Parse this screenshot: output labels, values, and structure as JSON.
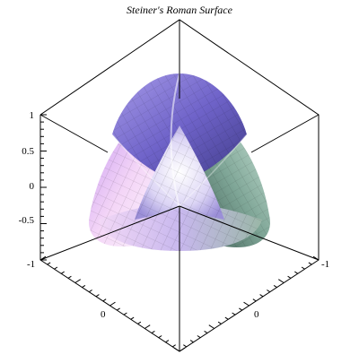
{
  "chart_data": {
    "type": "surface3d",
    "title": "Steiner's Roman Surface",
    "axes": {
      "z": {
        "range": [
          -1,
          1
        ],
        "ticks": [
          1,
          0.5,
          0,
          -0.5
        ],
        "tick_labels": [
          "1",
          "0.5",
          "0",
          "-0.5"
        ]
      },
      "x": {
        "range": [
          -1,
          1
        ],
        "tick_labels": [
          "-1",
          "0"
        ]
      },
      "y": {
        "range": [
          -1,
          1
        ],
        "tick_labels": [
          "-1",
          "0"
        ]
      }
    },
    "grid": false,
    "box": "boxed",
    "surface": {
      "parametric": "(sin(2u)cos^2(v), sin(u)sin(2v), cos(u)sin(2v))",
      "colors": [
        "#7b6ad6",
        "#f3d7f4",
        "#5b7f73"
      ]
    }
  }
}
